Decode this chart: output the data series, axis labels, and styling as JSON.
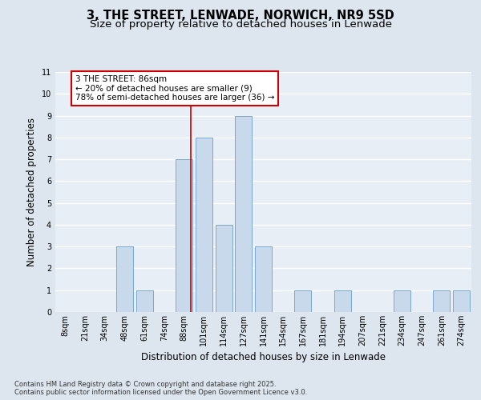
{
  "title_line1": "3, THE STREET, LENWADE, NORWICH, NR9 5SD",
  "title_line2": "Size of property relative to detached houses in Lenwade",
  "xlabel": "Distribution of detached houses by size in Lenwade",
  "ylabel": "Number of detached properties",
  "categories": [
    "8sqm",
    "21sqm",
    "34sqm",
    "48sqm",
    "61sqm",
    "74sqm",
    "88sqm",
    "101sqm",
    "114sqm",
    "127sqm",
    "141sqm",
    "154sqm",
    "167sqm",
    "181sqm",
    "194sqm",
    "207sqm",
    "221sqm",
    "234sqm",
    "247sqm",
    "261sqm",
    "274sqm"
  ],
  "values": [
    0,
    0,
    0,
    3,
    1,
    0,
    7,
    8,
    4,
    9,
    3,
    0,
    1,
    0,
    1,
    0,
    0,
    1,
    0,
    1,
    1
  ],
  "bar_color": "#c9d9ec",
  "bar_edge_color": "#7aa8d2",
  "red_line_index": 6,
  "annotation_text": "3 THE STREET: 86sqm\n← 20% of detached houses are smaller (9)\n78% of semi-detached houses are larger (36) →",
  "annotation_box_color": "#ffffff",
  "annotation_box_edge_color": "#cc0000",
  "ylim": [
    0,
    11
  ],
  "yticks": [
    0,
    1,
    2,
    3,
    4,
    5,
    6,
    7,
    8,
    9,
    10,
    11
  ],
  "background_color": "#dde5ee",
  "plot_background_color": "#e8eef5",
  "grid_color": "#ffffff",
  "footer_text": "Contains HM Land Registry data © Crown copyright and database right 2025.\nContains public sector information licensed under the Open Government Licence v3.0.",
  "title_fontsize": 10.5,
  "subtitle_fontsize": 9.5,
  "tick_fontsize": 7,
  "label_fontsize": 8.5,
  "annotation_fontsize": 7.5,
  "footer_fontsize": 6.0
}
